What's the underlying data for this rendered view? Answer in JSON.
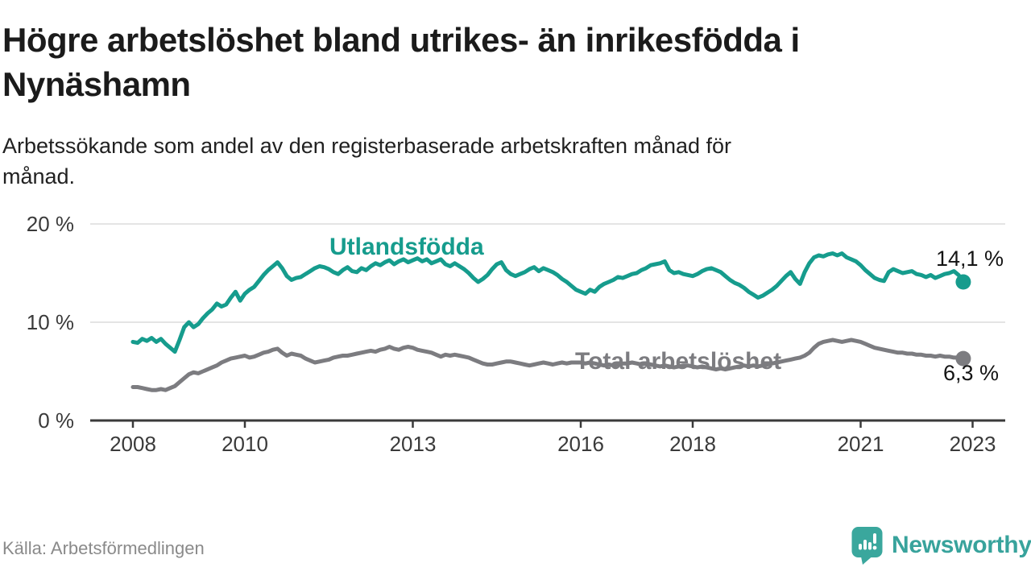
{
  "header": {
    "title_line1": "Högre arbetslöshet bland utrikes- än inrikesfödda i",
    "title_line2": "Nynäshamn",
    "subtitle_line1": "Arbetssökande som andel av den registerbaserade arbetskraften månad för",
    "subtitle_line2": "månad."
  },
  "footer": {
    "source": "Källa: Arbetsförmedlingen",
    "logo_text": "Newsworthy"
  },
  "colors": {
    "accent_teal": "#169c8d",
    "line_gray": "#7c7c80",
    "axis": "#3a3a3a",
    "gridline": "#dbdbdb",
    "end_label": "#141414",
    "logo_teal": "#38a39c"
  },
  "chart_data": {
    "type": "line",
    "title": "Högre arbetslöshet bland utrikes- än inrikesfödda i Nynäshamn",
    "subtitle": "Arbetssökande som andel av den registerbaserade arbetskraften månad för månad.",
    "x_unit": "month",
    "x_start_year": 2008,
    "x_end_label_year": 2023,
    "grid": true,
    "legend_position": "inline-labels",
    "ylim": [
      0,
      21
    ],
    "y_ticks": [
      {
        "value": 0,
        "label": "0 %"
      },
      {
        "value": 10,
        "label": "10 %"
      },
      {
        "value": 20,
        "label": "20 %"
      }
    ],
    "x_ticks": [
      {
        "year": 2008,
        "label": "2008"
      },
      {
        "year": 2010,
        "label": "2010"
      },
      {
        "year": 2013,
        "label": "2013"
      },
      {
        "year": 2016,
        "label": "2016"
      },
      {
        "year": 2018,
        "label": "2018"
      },
      {
        "year": 2021,
        "label": "2021"
      },
      {
        "year": 2023,
        "label": "2023"
      }
    ],
    "series": [
      {
        "name": "Utlandsfödda",
        "color": "#169c8d",
        "end_label": "14,1 %",
        "end_value": 14.1,
        "values": [
          8.0,
          7.9,
          8.3,
          8.1,
          8.4,
          8.0,
          8.3,
          7.8,
          7.4,
          7.0,
          8.2,
          9.5,
          10.0,
          9.5,
          9.8,
          10.4,
          10.9,
          11.3,
          11.9,
          11.6,
          11.8,
          12.5,
          13.1,
          12.2,
          12.9,
          13.3,
          13.6,
          14.2,
          14.8,
          15.3,
          15.7,
          16.1,
          15.5,
          14.7,
          14.3,
          14.5,
          14.6,
          14.9,
          15.2,
          15.5,
          15.7,
          15.6,
          15.4,
          15.1,
          14.9,
          15.3,
          15.6,
          15.2,
          15.1,
          15.5,
          15.3,
          15.7,
          16.0,
          15.8,
          16.1,
          16.3,
          15.9,
          16.2,
          16.4,
          16.1,
          16.3,
          16.5,
          16.2,
          16.4,
          16.0,
          16.2,
          16.4,
          15.9,
          15.7,
          16.0,
          15.7,
          15.4,
          15.0,
          14.5,
          14.1,
          14.4,
          14.8,
          15.4,
          15.9,
          16.1,
          15.3,
          14.9,
          14.7,
          14.9,
          15.1,
          15.4,
          15.6,
          15.2,
          15.5,
          15.3,
          15.1,
          14.8,
          14.4,
          14.1,
          13.7,
          13.3,
          13.1,
          12.9,
          13.3,
          13.1,
          13.6,
          13.9,
          14.1,
          14.3,
          14.6,
          14.5,
          14.7,
          14.9,
          15.0,
          15.3,
          15.5,
          15.8,
          15.9,
          16.0,
          16.2,
          15.3,
          15.0,
          15.1,
          14.9,
          14.8,
          14.7,
          14.9,
          15.2,
          15.4,
          15.5,
          15.3,
          15.1,
          14.7,
          14.3,
          14.0,
          13.8,
          13.5,
          13.1,
          12.8,
          12.5,
          12.7,
          13.0,
          13.3,
          13.7,
          14.2,
          14.7,
          15.1,
          14.4,
          13.9,
          15.1,
          16.0,
          16.6,
          16.8,
          16.7,
          16.9,
          17.0,
          16.8,
          17.0,
          16.6,
          16.4,
          16.2,
          15.8,
          15.3,
          14.9,
          14.5,
          14.3,
          14.2,
          15.1,
          15.4,
          15.2,
          15.0,
          15.1,
          15.2,
          14.9,
          14.8,
          14.6,
          14.8,
          14.5,
          14.7,
          14.9,
          15.0,
          15.2,
          14.8,
          14.1
        ]
      },
      {
        "name": "Total arbetslöshet",
        "color": "#7c7c80",
        "end_label": "6,3 %",
        "end_value": 6.3,
        "values": [
          3.4,
          3.4,
          3.3,
          3.2,
          3.1,
          3.1,
          3.2,
          3.1,
          3.3,
          3.5,
          3.9,
          4.3,
          4.7,
          4.9,
          4.8,
          5.0,
          5.2,
          5.4,
          5.6,
          5.9,
          6.1,
          6.3,
          6.4,
          6.5,
          6.6,
          6.4,
          6.5,
          6.7,
          6.9,
          7.0,
          7.2,
          7.3,
          6.9,
          6.6,
          6.8,
          6.7,
          6.6,
          6.3,
          6.1,
          5.9,
          6.0,
          6.1,
          6.2,
          6.4,
          6.5,
          6.6,
          6.6,
          6.7,
          6.8,
          6.9,
          7.0,
          7.1,
          7.0,
          7.2,
          7.3,
          7.5,
          7.3,
          7.2,
          7.4,
          7.5,
          7.4,
          7.2,
          7.1,
          7.0,
          6.9,
          6.7,
          6.5,
          6.7,
          6.6,
          6.7,
          6.6,
          6.5,
          6.4,
          6.2,
          6.0,
          5.8,
          5.7,
          5.7,
          5.8,
          5.9,
          6.0,
          6.0,
          5.9,
          5.8,
          5.7,
          5.6,
          5.7,
          5.8,
          5.9,
          5.8,
          5.7,
          5.8,
          5.9,
          5.8,
          5.9,
          5.9,
          5.9,
          5.8,
          5.9,
          5.8,
          5.7,
          5.6,
          5.7,
          5.6,
          5.7,
          5.8,
          5.8,
          5.9,
          5.8,
          5.7,
          5.8,
          5.7,
          5.6,
          5.5,
          5.6,
          5.5,
          5.4,
          5.5,
          5.6,
          5.6,
          5.5,
          5.4,
          5.5,
          5.4,
          5.3,
          5.2,
          5.3,
          5.2,
          5.3,
          5.4,
          5.5,
          5.6,
          5.5,
          5.6,
          5.5,
          5.6,
          5.7,
          5.8,
          5.9,
          6.0,
          6.1,
          6.2,
          6.3,
          6.4,
          6.6,
          6.9,
          7.4,
          7.8,
          8.0,
          8.1,
          8.2,
          8.1,
          8.0,
          8.1,
          8.2,
          8.1,
          8.0,
          7.8,
          7.6,
          7.4,
          7.3,
          7.2,
          7.1,
          7.0,
          6.9,
          6.9,
          6.8,
          6.8,
          6.7,
          6.7,
          6.6,
          6.6,
          6.5,
          6.6,
          6.5,
          6.5,
          6.4,
          6.4,
          6.3
        ]
      }
    ]
  }
}
